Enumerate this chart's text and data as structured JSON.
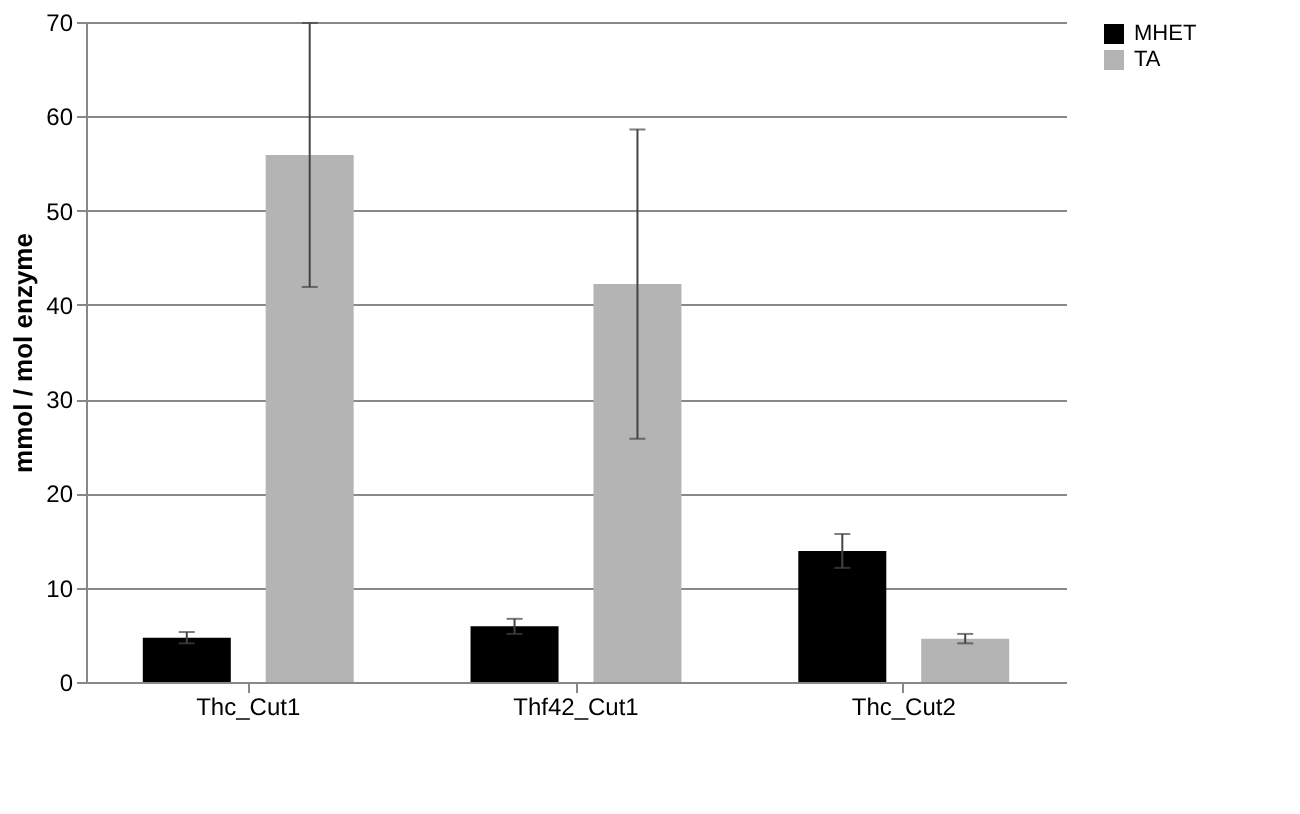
{
  "chart_data": {
    "type": "bar",
    "ylabel": "mmol / mol enzyme",
    "categories": [
      "Thc_Cut1",
      "Thf42_Cut1",
      "Thc_Cut2"
    ],
    "series": [
      {
        "name": "MHET",
        "color": "#000000",
        "values": [
          4.7,
          5.9,
          13.9
        ],
        "errors": [
          0.6,
          0.8,
          1.8
        ]
      },
      {
        "name": "TA",
        "color": "#b4b4b4",
        "values": [
          55.9,
          42.2,
          4.6
        ],
        "errors": [
          14,
          16.4,
          0.5
        ]
      }
    ],
    "ylim": [
      0,
      70
    ],
    "yticks": [
      0,
      10,
      20,
      30,
      40,
      50,
      60,
      70
    ],
    "grid": "y",
    "legend": "right"
  }
}
